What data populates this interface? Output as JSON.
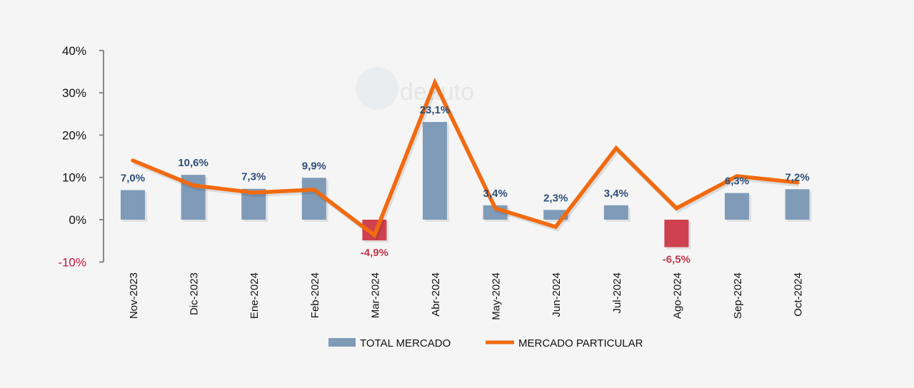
{
  "chart_data": {
    "type": "bar+line",
    "categories": [
      "Nov-2023",
      "Dic-2023",
      "Ene-2024",
      "Feb-2024",
      "Mar-2024",
      "Abr-2024",
      "May-2024",
      "Jun-2024",
      "Jul-2024",
      "Ago-2024",
      "Sep-2024",
      "Oct-2024"
    ],
    "series": [
      {
        "name": "TOTAL MERCADO",
        "type": "bar",
        "values": [
          7.0,
          10.6,
          7.3,
          9.9,
          -4.9,
          23.1,
          3.4,
          2.3,
          3.4,
          -6.5,
          6.3,
          7.2
        ],
        "labels": [
          "7,0%",
          "10,6%",
          "7,3%",
          "9,9%",
          "-4,9%",
          "23,1%",
          "3,4%",
          "2,3%",
          "3,4%",
          "-6,5%",
          "6,3%",
          "7,2%"
        ],
        "color": "#7f9bb8",
        "negative_color": "#d0414f"
      },
      {
        "name": "MERCADO PARTICULAR",
        "type": "line",
        "values": [
          14.0,
          8.1,
          6.4,
          7.1,
          -3.7,
          32.4,
          2.7,
          -1.7,
          16.9,
          2.7,
          10.3,
          8.8
        ],
        "color": "#f26a10"
      }
    ],
    "ylim": [
      -10,
      40
    ],
    "yticks": [
      "-10%",
      "0%",
      "10%",
      "20%",
      "30%",
      "40%"
    ],
    "ytick_values": [
      -10,
      0,
      10,
      20,
      30,
      40
    ],
    "grid": false,
    "legend": "bottom",
    "watermark": "ideauto"
  }
}
